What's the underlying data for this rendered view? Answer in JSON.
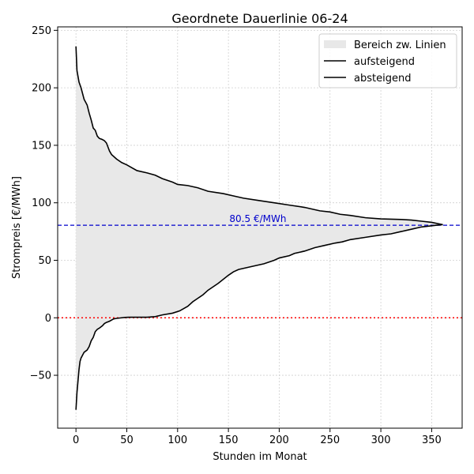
{
  "chart_data": {
    "type": "line",
    "title": "Geordnete Dauerlinie 06-24",
    "xlabel": "Stunden im Monat",
    "ylabel": "Strompreis [€/MWh]",
    "xlim": [
      -18,
      380
    ],
    "ylim": [
      -96,
      253
    ],
    "xticks": [
      0,
      50,
      100,
      150,
      200,
      250,
      300,
      350
    ],
    "yticks": [
      -50,
      0,
      50,
      100,
      150,
      200,
      250
    ],
    "grid": true,
    "legend_position": "top-right",
    "legend": {
      "fill_label": "Bereich zw. Linien",
      "asc_label": "aufsteigend",
      "desc_label": "absteigend"
    },
    "fill_color": "#e8e8e8",
    "line_color": "#000000",
    "zero_line": {
      "y": 0,
      "color": "#ff0000"
    },
    "mean_line": {
      "y": 80.5,
      "color": "#0000cc",
      "label": "80.5 €/MWh",
      "label_x": 151
    },
    "series": [
      {
        "name": "aufsteigend",
        "x": [
          0,
          1,
          2,
          3,
          4,
          5,
          8,
          11,
          13,
          15,
          17,
          19,
          21,
          23,
          26,
          28,
          30,
          33,
          35,
          37,
          40,
          45,
          48,
          52,
          60,
          70,
          78,
          85,
          95,
          102,
          110,
          115,
          120,
          125,
          130,
          140,
          150,
          155,
          160,
          175,
          185,
          195,
          200,
          210,
          215,
          225,
          235,
          245,
          255,
          262,
          270,
          285,
          300,
          310,
          320,
          330,
          340,
          350,
          355,
          361
        ],
        "y": [
          -80,
          -65,
          -55,
          -45,
          -38,
          -35,
          -30,
          -28,
          -25,
          -20,
          -17,
          -12,
          -10,
          -9,
          -7,
          -5,
          -4,
          -3,
          -2,
          -1,
          -0.5,
          0,
          0.3,
          0.5,
          0.5,
          0.5,
          1,
          2.5,
          4,
          6,
          10,
          14,
          17,
          20,
          24,
          30,
          37,
          40,
          42,
          45,
          47,
          50,
          52,
          54,
          56,
          58,
          61,
          63,
          65,
          66,
          68,
          70,
          72,
          73,
          75,
          77,
          79,
          80,
          80.5,
          81
        ]
      },
      {
        "name": "absteigend",
        "x": [
          0,
          1,
          2,
          3,
          5,
          8,
          11,
          13,
          15,
          17,
          19,
          21,
          23,
          26,
          28,
          30,
          33,
          35,
          40,
          45,
          50,
          60,
          70,
          78,
          85,
          95,
          100,
          110,
          120,
          130,
          145,
          155,
          165,
          180,
          195,
          210,
          225,
          240,
          250,
          260,
          270,
          285,
          300,
          320,
          330,
          340,
          350,
          361
        ],
        "y": [
          236,
          215,
          210,
          205,
          200,
          190,
          185,
          178,
          172,
          165,
          163,
          158,
          156,
          155,
          154,
          152,
          145,
          142,
          138,
          135,
          133,
          128,
          126,
          124,
          121,
          118,
          116,
          115,
          113,
          110,
          108,
          106,
          104,
          102,
          100,
          98,
          96,
          93,
          92,
          90,
          89,
          87,
          86,
          85.5,
          85,
          84,
          83,
          81
        ]
      }
    ]
  }
}
